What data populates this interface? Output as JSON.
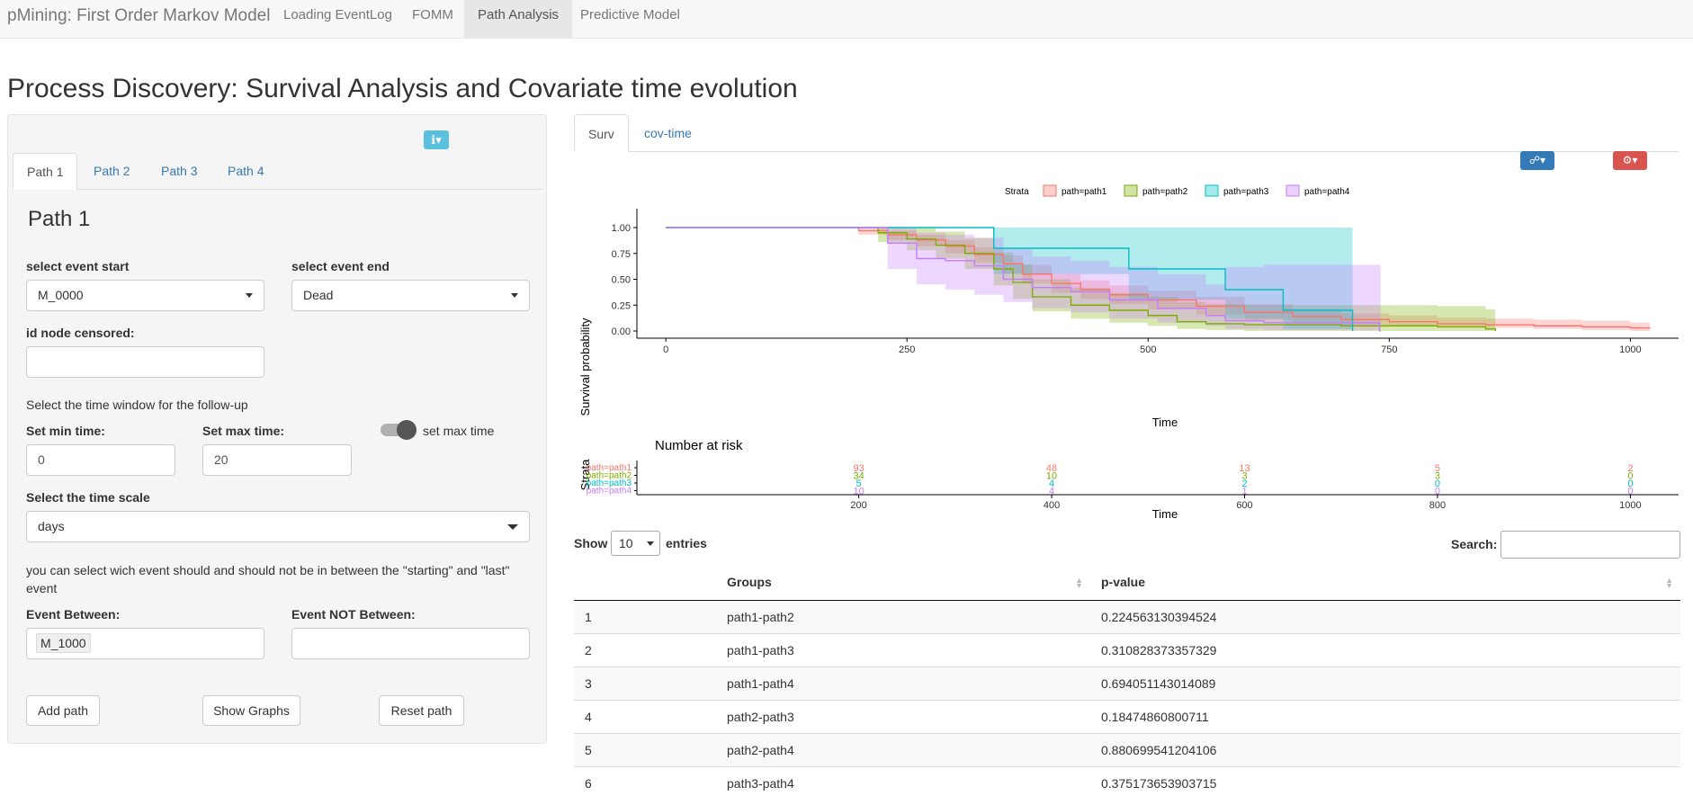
{
  "navbar": {
    "brand": "pMining: First Order Markov Model",
    "items": [
      {
        "label": "Loading EventLog",
        "active": false
      },
      {
        "label": "FOMM",
        "active": false
      },
      {
        "label": "Path Analysis",
        "active": true
      },
      {
        "label": "Predictive Model",
        "active": false
      }
    ]
  },
  "page_title": "Process Discovery: Survival Analysis and Covariate time evolution",
  "left_panel": {
    "info_icon": "info-icon",
    "tabs": [
      "Path 1",
      "Path 2",
      "Path 3",
      "Path 4"
    ],
    "active_tab": "Path 1",
    "heading": "Path 1",
    "event_start_label": "select event start",
    "event_start_value": "M_0000",
    "event_end_label": "select event end",
    "event_end_value": "Dead",
    "censored_label": "id node censored:",
    "censored_value": "",
    "time_window_text": "Select the time window for the follow-up",
    "min_time_label": "Set min time:",
    "min_time_value": "0",
    "max_time_label": "Set max time:",
    "max_time_value": "20",
    "toggle_label": "set max time",
    "time_scale_label": "Select the time scale",
    "time_scale_value": "days",
    "between_text": "you can select wich event should and should not be in between the \"starting\" and \"last\" event",
    "event_between_label": "Event Between:",
    "event_between_value": "M_1000",
    "event_not_between_label": "Event NOT Between:",
    "event_not_between_value": "",
    "buttons": {
      "add": "Add path",
      "show": "Show Graphs",
      "reset": "Reset path"
    }
  },
  "right_panel": {
    "tabs": [
      "Surv",
      "cov-time"
    ],
    "active_tab": "Surv",
    "icons": {
      "network": "network-icon",
      "settings": "gears-icon"
    }
  },
  "chart_data": [
    {
      "type": "line",
      "subtype": "kaplan-meier step curves with confidence bands",
      "legend_title": "Strata",
      "legend_position": "top",
      "xlabel": "Time",
      "ylabel": "Survival probability",
      "xlim": [
        -30,
        1050
      ],
      "ylim": [
        0,
        1
      ],
      "x_ticks": [
        0,
        250,
        500,
        750,
        1000
      ],
      "y_ticks": [
        0.0,
        0.25,
        0.5,
        0.75,
        1.0
      ],
      "y_tick_labels": [
        "0.00",
        "0.25",
        "0.50",
        "0.75",
        "1.00"
      ],
      "colors": {
        "path=path1": "#F8766D",
        "path=path2": "#7CAE00",
        "path=path3": "#00BFC4",
        "path=path4": "#C77CFF"
      },
      "series": [
        {
          "name": "path=path1",
          "x": [
            0,
            160,
            200,
            230,
            260,
            290,
            320,
            350,
            370,
            400,
            430,
            460,
            500,
            550,
            600,
            650,
            700,
            750,
            800,
            850,
            900,
            950,
            1000,
            1020
          ],
          "y": [
            1.0,
            1.0,
            0.97,
            0.93,
            0.88,
            0.82,
            0.74,
            0.65,
            0.55,
            0.46,
            0.4,
            0.35,
            0.3,
            0.24,
            0.18,
            0.14,
            0.11,
            0.09,
            0.07,
            0.06,
            0.05,
            0.04,
            0.03,
            0.02
          ],
          "lower": [
            1.0,
            1.0,
            0.93,
            0.88,
            0.82,
            0.75,
            0.66,
            0.56,
            0.46,
            0.37,
            0.31,
            0.26,
            0.21,
            0.16,
            0.11,
            0.08,
            0.06,
            0.05,
            0.04,
            0.03,
            0.02,
            0.01,
            0.0,
            0.0
          ],
          "upper": [
            1.0,
            1.0,
            1.0,
            0.97,
            0.93,
            0.88,
            0.81,
            0.73,
            0.64,
            0.55,
            0.49,
            0.44,
            0.39,
            0.33,
            0.26,
            0.21,
            0.17,
            0.15,
            0.13,
            0.12,
            0.11,
            0.1,
            0.08,
            0.07
          ]
        },
        {
          "name": "path=path2",
          "x": [
            0,
            190,
            220,
            250,
            280,
            310,
            340,
            360,
            380,
            420,
            460,
            500,
            530,
            560,
            600,
            700,
            800,
            850,
            860
          ],
          "y": [
            1.0,
            1.0,
            0.95,
            0.89,
            0.83,
            0.75,
            0.6,
            0.47,
            0.33,
            0.25,
            0.2,
            0.15,
            0.09,
            0.07,
            0.06,
            0.05,
            0.04,
            0.02,
            0.0
          ],
          "lower": [
            1.0,
            1.0,
            0.86,
            0.78,
            0.7,
            0.6,
            0.44,
            0.31,
            0.19,
            0.12,
            0.08,
            0.05,
            0.02,
            0.01,
            0.0,
            0.0,
            0.0,
            0.0,
            0.0
          ],
          "upper": [
            1.0,
            1.0,
            1.0,
            1.0,
            0.96,
            0.9,
            0.76,
            0.64,
            0.5,
            0.42,
            0.37,
            0.33,
            0.28,
            0.26,
            0.25,
            0.25,
            0.24,
            0.21,
            0.21
          ]
        },
        {
          "name": "path=path3",
          "x": [
            0,
            230,
            340,
            480,
            580,
            640,
            712
          ],
          "y": [
            1.0,
            1.0,
            0.8,
            0.6,
            0.4,
            0.2,
            0.0
          ],
          "lower": [
            1.0,
            1.0,
            0.55,
            0.3,
            0.12,
            0.02,
            0.0
          ],
          "upper": [
            1.0,
            1.0,
            1.0,
            1.0,
            1.0,
            1.0,
            1.0
          ]
        },
        {
          "name": "path=path4",
          "x": [
            0,
            230,
            260,
            290,
            320,
            350,
            380,
            420,
            460,
            510,
            560,
            580,
            620,
            700,
            740,
            741
          ],
          "y": [
            1.0,
            0.85,
            0.7,
            0.68,
            0.63,
            0.5,
            0.42,
            0.38,
            0.3,
            0.22,
            0.15,
            0.1,
            0.08,
            0.08,
            0.0,
            0.0
          ],
          "lower": [
            1.0,
            0.6,
            0.45,
            0.4,
            0.35,
            0.28,
            0.22,
            0.18,
            0.12,
            0.08,
            0.05,
            0.02,
            0.01,
            0.01,
            0.0,
            0.0
          ],
          "upper": [
            1.0,
            1.0,
            0.95,
            0.93,
            0.9,
            0.8,
            0.72,
            0.68,
            0.62,
            0.55,
            0.45,
            0.62,
            0.64,
            0.64,
            0.64,
            0.0
          ]
        }
      ]
    },
    {
      "type": "table",
      "title": "Number at risk",
      "xlabel": "Time",
      "ylabel": "Strata",
      "x_ticks": [
        200,
        400,
        600,
        800,
        1000
      ],
      "xlim": [
        -30,
        1050
      ],
      "rows": [
        {
          "name": "path=path1",
          "values": [
            93,
            48,
            13,
            5,
            2
          ]
        },
        {
          "name": "path=path2",
          "values": [
            34,
            10,
            3,
            3,
            0
          ]
        },
        {
          "name": "path=path3",
          "values": [
            5,
            4,
            2,
            0,
            0
          ]
        },
        {
          "name": "path=path4",
          "values": [
            10,
            4,
            1,
            0,
            0
          ]
        }
      ]
    }
  ],
  "datatable": {
    "show_label": "Show",
    "length_value": "10",
    "entries_label": "entries",
    "search_label": "Search:",
    "columns": [
      "",
      "Groups",
      "p-value"
    ],
    "rows": [
      [
        "1",
        "path1-path2",
        "0.224563130394524"
      ],
      [
        "2",
        "path1-path3",
        "0.310828373357329"
      ],
      [
        "3",
        "path1-path4",
        "0.694051143014089"
      ],
      [
        "4",
        "path2-path3",
        "0.18474860800711"
      ],
      [
        "5",
        "path2-path4",
        "0.880699541204106"
      ],
      [
        "6",
        "path3-path4",
        "0.375173653903715"
      ]
    ]
  }
}
